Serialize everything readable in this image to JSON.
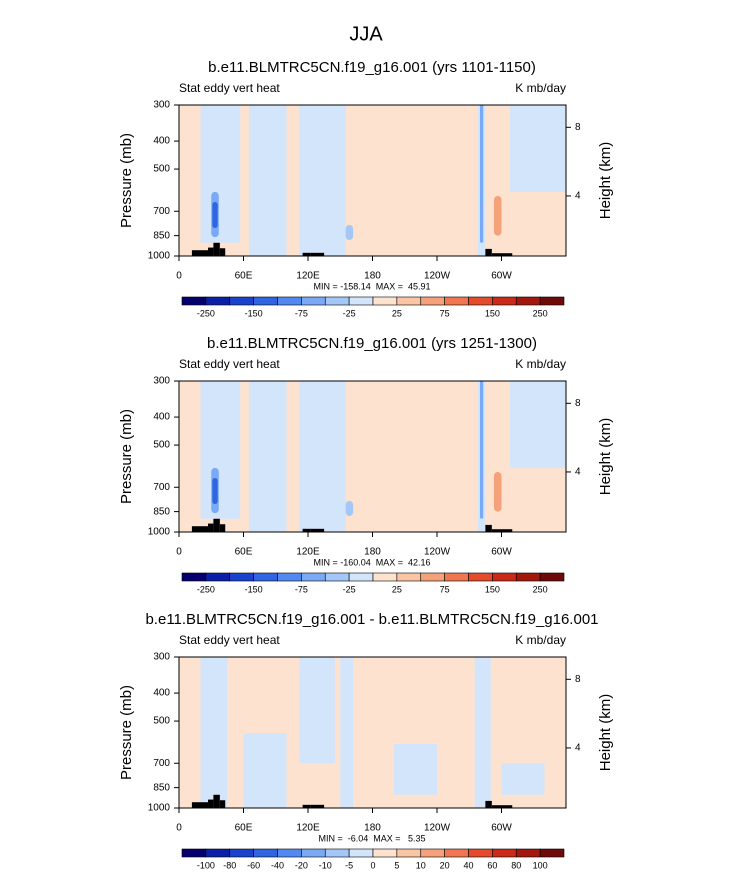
{
  "title": "JJA",
  "chart_data": [
    {
      "type": "contour",
      "title": "b.e11.BLMTRC5CN.f19_g16.001 (yrs 1101-1150)",
      "subtitle_left": "Stat eddy vert heat",
      "subtitle_right": "K mb/day",
      "xlim": [
        0,
        360
      ],
      "xticks": [
        0,
        {
          "value": 60,
          "label": "60E"
        },
        {
          "value": 120,
          "label": "120E"
        },
        180,
        {
          "value": 240,
          "label": "120W"
        },
        {
          "value": 300,
          "label": "60W"
        }
      ],
      "ylim": [
        1000,
        300
      ],
      "y_log": true,
      "yticks": [
        300,
        400,
        500,
        700,
        850,
        1000
      ],
      "y_label": "Pressure (mb)",
      "y2lim": [
        0.5,
        9.3
      ],
      "y2ticks": [
        4,
        8
      ],
      "y2_label": "Height (km)",
      "stats": "MIN = -158.14  MAX =  45.91",
      "colorbar": {
        "levels": [
          -250,
          -200,
          -150,
          -100,
          -75,
          -50,
          -25,
          0,
          25,
          50,
          75,
          100,
          150,
          200,
          250
        ],
        "label_stride": 2,
        "colors": [
          "#06006e",
          "#0b20a6",
          "#1a42cc",
          "#3065e2",
          "#5289f0",
          "#7aa9f5",
          "#a5c7f8",
          "#d3e5fb",
          "#fde3cf",
          "#f9c5a4",
          "#f5a17a",
          "#ef7651",
          "#e44b2b",
          "#c92b18",
          "#a4170f",
          "#6e0a08"
        ]
      },
      "regions": [
        {
          "lon": [
            0,
            360
          ],
          "p": [
            300,
            1000
          ],
          "value": 10
        },
        {
          "lon": [
            20,
            57
          ],
          "p": [
            300,
            900
          ],
          "value": -10
        },
        {
          "lon": [
            65,
            100
          ],
          "p": [
            300,
            1000
          ],
          "value": -10
        },
        {
          "lon": [
            112,
            155
          ],
          "p": [
            300,
            1000
          ],
          "value": -10
        },
        {
          "lon": [
            278,
            285
          ],
          "p": [
            300,
            1000
          ],
          "value": -10
        },
        {
          "lon": [
            280,
            283
          ],
          "p": [
            300,
            900
          ],
          "value": -60
        },
        {
          "lon": [
            308,
            360
          ],
          "p": [
            300,
            600
          ],
          "value": -10
        },
        {
          "lon": [
            30,
            37
          ],
          "p": [
            600,
            860
          ],
          "value": -60
        },
        {
          "lon": [
            31,
            36
          ],
          "p": [
            650,
            800
          ],
          "value": -120
        },
        {
          "lon": [
            293,
            300
          ],
          "p": [
            620,
            850
          ],
          "value": 60
        },
        {
          "lon": [
            155,
            162
          ],
          "p": [
            780,
            880
          ],
          "value": -30
        }
      ],
      "terrain": [
        {
          "lon": [
            12,
            27
          ],
          "p": 955
        },
        {
          "lon": [
            27,
            32
          ],
          "p": 935
        },
        {
          "lon": [
            32,
            38
          ],
          "p": 900
        },
        {
          "lon": [
            38,
            43
          ],
          "p": 940
        },
        {
          "lon": [
            115,
            122
          ],
          "p": 975
        },
        {
          "lon": [
            122,
            135
          ],
          "p": 975
        },
        {
          "lon": [
            285,
            291
          ],
          "p": 945
        },
        {
          "lon": [
            291,
            310
          ],
          "p": 978
        }
      ]
    },
    {
      "type": "contour",
      "title": "b.e11.BLMTRC5CN.f19_g16.001 (yrs 1251-1300)",
      "subtitle_left": "Stat eddy vert heat",
      "subtitle_right": "K mb/day",
      "xlim": [
        0,
        360
      ],
      "xticks": [
        0,
        {
          "value": 60,
          "label": "60E"
        },
        {
          "value": 120,
          "label": "120E"
        },
        180,
        {
          "value": 240,
          "label": "120W"
        },
        {
          "value": 300,
          "label": "60W"
        }
      ],
      "ylim": [
        1000,
        300
      ],
      "y_log": true,
      "yticks": [
        300,
        400,
        500,
        700,
        850,
        1000
      ],
      "y_label": "Pressure (mb)",
      "y2lim": [
        0.5,
        9.3
      ],
      "y2ticks": [
        4,
        8
      ],
      "y2_label": "Height (km)",
      "stats": "MIN = -160.04  MAX =  42.16",
      "colorbar": {
        "levels": [
          -250,
          -200,
          -150,
          -100,
          -75,
          -50,
          -25,
          0,
          25,
          50,
          75,
          100,
          150,
          200,
          250
        ],
        "label_stride": 2,
        "colors": [
          "#06006e",
          "#0b20a6",
          "#1a42cc",
          "#3065e2",
          "#5289f0",
          "#7aa9f5",
          "#a5c7f8",
          "#d3e5fb",
          "#fde3cf",
          "#f9c5a4",
          "#f5a17a",
          "#ef7651",
          "#e44b2b",
          "#c92b18",
          "#a4170f",
          "#6e0a08"
        ]
      },
      "regions": [
        {
          "lon": [
            0,
            360
          ],
          "p": [
            300,
            1000
          ],
          "value": 10
        },
        {
          "lon": [
            20,
            57
          ],
          "p": [
            300,
            900
          ],
          "value": -10
        },
        {
          "lon": [
            65,
            100
          ],
          "p": [
            300,
            1000
          ],
          "value": -10
        },
        {
          "lon": [
            112,
            155
          ],
          "p": [
            300,
            1000
          ],
          "value": -10
        },
        {
          "lon": [
            278,
            285
          ],
          "p": [
            300,
            1000
          ],
          "value": -10
        },
        {
          "lon": [
            280,
            283
          ],
          "p": [
            300,
            900
          ],
          "value": -60
        },
        {
          "lon": [
            308,
            360
          ],
          "p": [
            300,
            600
          ],
          "value": -10
        },
        {
          "lon": [
            30,
            37
          ],
          "p": [
            600,
            860
          ],
          "value": -60
        },
        {
          "lon": [
            31,
            36
          ],
          "p": [
            650,
            800
          ],
          "value": -120
        },
        {
          "lon": [
            293,
            300
          ],
          "p": [
            620,
            850
          ],
          "value": 60
        },
        {
          "lon": [
            155,
            162
          ],
          "p": [
            780,
            880
          ],
          "value": -30
        }
      ],
      "terrain": [
        {
          "lon": [
            12,
            27
          ],
          "p": 955
        },
        {
          "lon": [
            27,
            32
          ],
          "p": 935
        },
        {
          "lon": [
            32,
            38
          ],
          "p": 900
        },
        {
          "lon": [
            38,
            43
          ],
          "p": 940
        },
        {
          "lon": [
            115,
            122
          ],
          "p": 975
        },
        {
          "lon": [
            122,
            135
          ],
          "p": 975
        },
        {
          "lon": [
            285,
            291
          ],
          "p": 945
        },
        {
          "lon": [
            291,
            310
          ],
          "p": 978
        }
      ]
    },
    {
      "type": "contour",
      "title": "b.e11.BLMTRC5CN.f19_g16.001 - b.e11.BLMTRC5CN.f19_g16.001",
      "subtitle_left": "Stat eddy vert heat",
      "subtitle_right": "K mb/day",
      "xlim": [
        0,
        360
      ],
      "xticks": [
        0,
        {
          "value": 60,
          "label": "60E"
        },
        {
          "value": 120,
          "label": "120E"
        },
        180,
        {
          "value": 240,
          "label": "120W"
        },
        {
          "value": 300,
          "label": "60W"
        }
      ],
      "ylim": [
        1000,
        300
      ],
      "y_log": true,
      "yticks": [
        300,
        400,
        500,
        700,
        850,
        1000
      ],
      "y_label": "Pressure (mb)",
      "y2lim": [
        0.5,
        9.3
      ],
      "y2ticks": [
        4,
        8
      ],
      "y2_label": "Height (km)",
      "stats": "MIN =  -6.04  MAX =   5.35",
      "colorbar": {
        "levels": [
          -100,
          -80,
          -60,
          -40,
          -20,
          -10,
          -5,
          0,
          5,
          10,
          20,
          40,
          60,
          80,
          100
        ],
        "label_stride": 1,
        "colors": [
          "#06006e",
          "#0b20a6",
          "#1a42cc",
          "#3065e2",
          "#5289f0",
          "#7aa9f5",
          "#a5c7f8",
          "#d3e5fb",
          "#fde3cf",
          "#f9c5a4",
          "#f5a17a",
          "#ef7651",
          "#e44b2b",
          "#c92b18",
          "#a4170f",
          "#6e0a08"
        ]
      },
      "regions": [
        {
          "lon": [
            0,
            360
          ],
          "p": [
            300,
            1000
          ],
          "value": 2
        },
        {
          "lon": [
            20,
            45
          ],
          "p": [
            300,
            1000
          ],
          "value": -2
        },
        {
          "lon": [
            60,
            100
          ],
          "p": [
            550,
            1000
          ],
          "value": -2
        },
        {
          "lon": [
            112,
            145
          ],
          "p": [
            300,
            700
          ],
          "value": -2
        },
        {
          "lon": [
            150,
            162
          ],
          "p": [
            300,
            1000
          ],
          "value": -2
        },
        {
          "lon": [
            200,
            240
          ],
          "p": [
            600,
            900
          ],
          "value": -2
        },
        {
          "lon": [
            275,
            290
          ],
          "p": [
            300,
            1000
          ],
          "value": -2
        },
        {
          "lon": [
            300,
            340
          ],
          "p": [
            700,
            900
          ],
          "value": -2
        }
      ],
      "terrain": [
        {
          "lon": [
            12,
            27
          ],
          "p": 955
        },
        {
          "lon": [
            27,
            32
          ],
          "p": 935
        },
        {
          "lon": [
            32,
            38
          ],
          "p": 900
        },
        {
          "lon": [
            38,
            43
          ],
          "p": 940
        },
        {
          "lon": [
            115,
            122
          ],
          "p": 975
        },
        {
          "lon": [
            122,
            135
          ],
          "p": 975
        },
        {
          "lon": [
            285,
            291
          ],
          "p": 945
        },
        {
          "lon": [
            291,
            310
          ],
          "p": 978
        }
      ]
    }
  ]
}
